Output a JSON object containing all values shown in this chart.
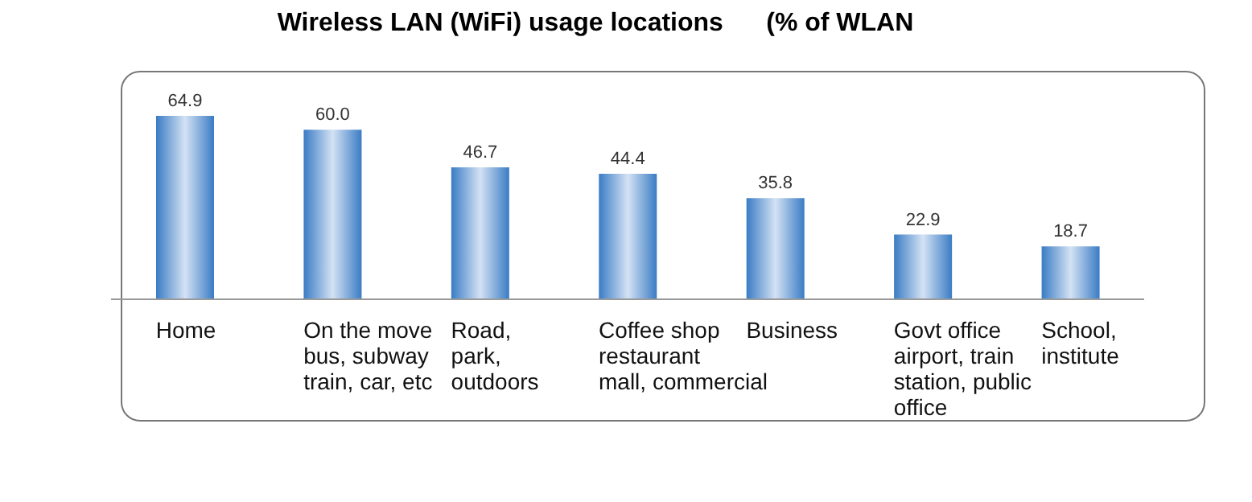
{
  "chart_data": {
    "type": "bar",
    "title": "Wireless LAN (WiFi) usage locations      (% of WLAN",
    "categories": [
      "Home",
      "On the move\nbus, subway\ntrain, car, etc",
      "Road,\npark,\noutdoors",
      "Coffee shop\nrestaurant\nmall, commercial",
      "Business",
      "Govt office\nairport, train\nstation, public\noffice",
      "School,\ninstitute"
    ],
    "values": [
      64.9,
      60.0,
      46.7,
      44.4,
      35.8,
      22.9,
      18.7
    ],
    "value_labels": [
      "64.9",
      "60.0",
      "46.7",
      "44.4",
      "35.8",
      "22.9",
      "18.7"
    ],
    "color": "#3a7cc4",
    "grid": false,
    "legend": false
  }
}
